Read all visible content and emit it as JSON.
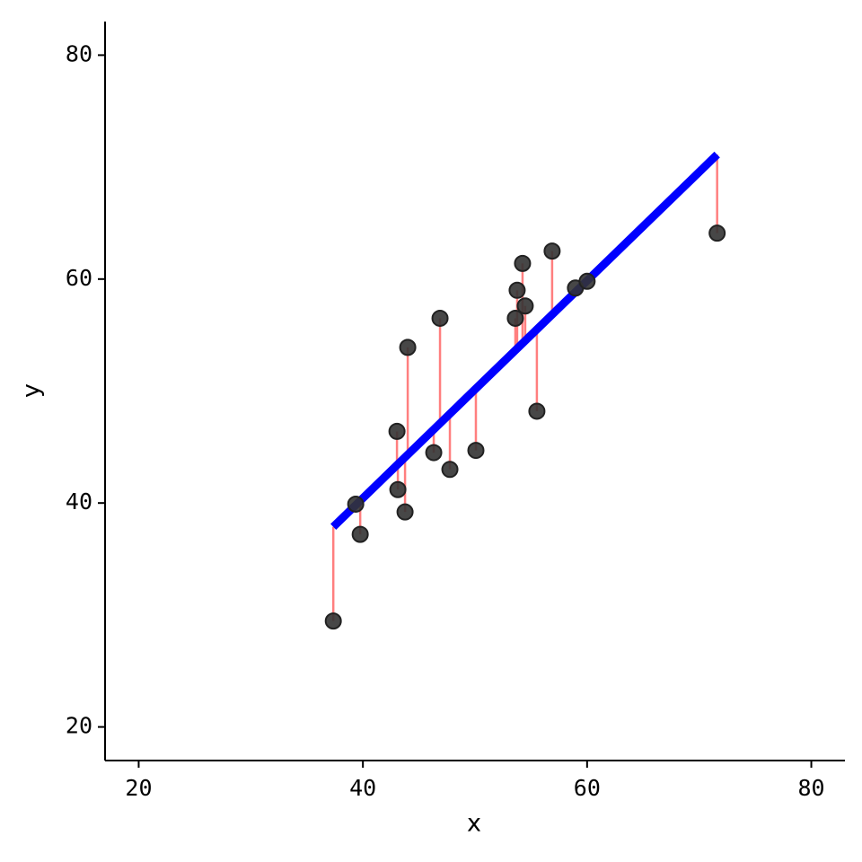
{
  "chart_data": {
    "type": "scatter",
    "x_label": "x",
    "y_label": "y",
    "x": [
      37.36,
      39.36,
      39.76,
      43.04,
      43.12,
      43.76,
      44.0,
      46.32,
      46.88,
      47.76,
      50.08,
      53.6,
      53.76,
      54.24,
      54.48,
      55.52,
      56.88,
      58.96,
      60.0,
      71.6
    ],
    "values": [
      29.46,
      39.9,
      37.2,
      46.4,
      41.2,
      39.2,
      53.9,
      44.5,
      56.5,
      43.0,
      44.7,
      56.5,
      59.0,
      61.4,
      57.6,
      48.2,
      62.5,
      59.2,
      59.8,
      64.1
    ],
    "color": "#333333",
    "fit": {
      "x": [
        37.36,
        71.6
      ],
      "y": [
        37.87,
        71.12
      ],
      "color": "#0000ff"
    },
    "residual_color": "#ff7f7f",
    "xlim": [
      17,
      83
    ],
    "ylim": [
      17,
      83
    ],
    "xticks": [
      20,
      40,
      60,
      80
    ],
    "yticks": [
      20,
      40,
      60,
      80
    ]
  }
}
